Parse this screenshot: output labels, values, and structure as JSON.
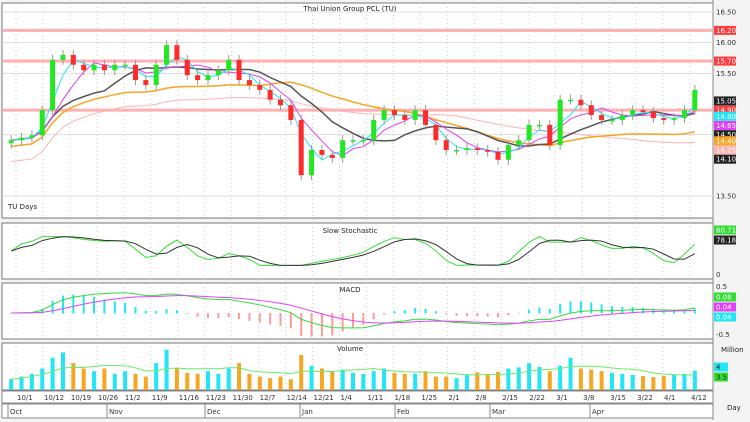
{
  "chart_data": {
    "type": "candlestick",
    "title": "Thai Union Group PCL (TU)",
    "period_label": "TU Days",
    "price_axis": {
      "ylim": [
        13.5,
        16.5
      ],
      "tick_labels": [
        "16.50",
        "16.00",
        "15.50",
        "13.50"
      ],
      "marker_labels": [
        {
          "text": "16.20",
          "color": "#ff3b3b"
        },
        {
          "text": "15.70",
          "color": "#ff3b3b"
        },
        {
          "text": "15.05",
          "color": "#222222"
        },
        {
          "text": "14.90",
          "color": "#ff3b3b"
        },
        {
          "text": "14.80",
          "color": "#22e5f5"
        },
        {
          "text": "14.65",
          "color": "#e040fb"
        },
        {
          "text": "14.50",
          "color": "#222222"
        },
        {
          "text": "14.40",
          "color": "#f5a623"
        },
        {
          "text": "14.25",
          "color": "#ffb3b3"
        },
        {
          "text": "14.10",
          "color": "#222222"
        }
      ],
      "resistance_lines": [
        16.2,
        15.7,
        14.9
      ]
    },
    "closes": [
      14.41,
      14.45,
      14.49,
      14.9,
      15.72,
      15.8,
      15.64,
      15.55,
      15.64,
      15.55,
      15.64,
      15.64,
      15.39,
      15.31,
      15.64,
      15.96,
      15.72,
      15.47,
      15.39,
      15.47,
      15.55,
      15.72,
      15.39,
      15.31,
      15.23,
      15.07,
      14.98,
      14.74,
      13.84,
      14.25,
      14.17,
      14.12,
      14.41,
      14.41,
      14.41,
      14.74,
      14.9,
      14.82,
      14.74,
      14.9,
      14.66,
      14.41,
      14.25,
      14.25,
      14.28,
      14.25,
      14.22,
      14.09,
      14.33,
      14.41,
      14.66,
      14.66,
      14.33,
      15.07,
      15.07,
      14.98,
      14.82,
      14.74,
      14.74,
      14.82,
      14.9,
      14.87,
      14.77,
      14.74,
      14.77,
      14.9,
      15.23
    ],
    "volume": [
      2,
      2.5,
      3,
      4,
      6,
      7,
      5,
      4,
      3.5,
      4,
      3,
      3.5,
      3,
      2.5,
      5,
      7.5,
      4,
      3.2,
      3,
      3.5,
      3,
      4,
      5,
      3,
      2.5,
      2.2,
      2.5,
      2,
      6.5,
      4.5,
      4,
      3.5,
      3.8,
      3.2,
      3,
      3.5,
      4,
      3.2,
      3,
      3,
      3.5,
      2.5,
      2.5,
      2.2,
      2.8,
      3.3,
      3,
      3.4,
      4,
      4.2,
      5,
      4.3,
      3.5,
      4.5,
      6,
      4,
      3.8,
      3.5,
      3.2,
      3,
      2.8,
      2.6,
      2.4,
      2.6,
      2.8,
      3,
      3.6
    ],
    "stochastic": {
      "title": "Slow Stochastic",
      "labels": [
        {
          "text": "80.71",
          "color": "#33dd33"
        },
        {
          "text": "78.18",
          "color": "#222222"
        }
      ],
      "tick_labels": [
        "0"
      ]
    },
    "macd": {
      "title": "MACD",
      "labels": [
        {
          "text": "0.08",
          "color": "#33dd33"
        },
        {
          "text": "0.04",
          "color": "#e040fb"
        },
        {
          "text": "0.04",
          "color": "#22e5f5"
        }
      ],
      "tick_labels": [
        "0.5",
        "-0.5"
      ]
    },
    "volume_panel": {
      "title": "Volume",
      "unit": "Million",
      "labels": [
        {
          "text": "4",
          "color": "#22e5f5"
        },
        {
          "text": "3.5",
          "color": "#33dd33"
        }
      ]
    },
    "x_tick_labels": [
      "10/1",
      "10/12",
      "10/19",
      "10/26",
      "11/2",
      "11/9",
      "11/16",
      "11/23",
      "11/30",
      "12/7",
      "12/14",
      "12/21",
      "1/4",
      "1/11",
      "1/18",
      "1/25",
      "2/1",
      "2/8",
      "2/15",
      "2/22",
      "3/1",
      "3/8",
      "3/15",
      "3/22",
      "4/1",
      "4/12"
    ],
    "month_labels": [
      "Oct",
      "Nov",
      "Dec",
      "Jan",
      "Feb",
      "Mar",
      "Apr"
    ],
    "interval_label": "Day",
    "colors": {
      "up": "#22e822",
      "down": "#ff2a2a",
      "volume_up": "#22e5f5",
      "volume_down": "#f5a623",
      "ma_fast": "#22e5f5",
      "ma_mid": "#e040fb",
      "ma_slow": "#555555",
      "ma_long": "#f5a623",
      "ma_longest": "#ffb3b3"
    }
  }
}
